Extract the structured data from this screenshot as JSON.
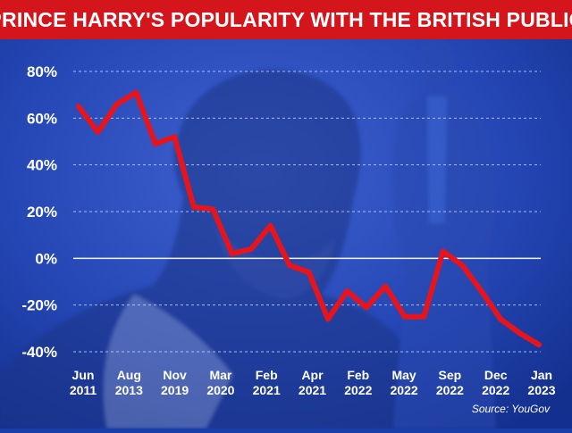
{
  "colors": {
    "title_bar": "#d4161c",
    "background": "#1a3ea8",
    "line": "#e8141c",
    "text": "#ffffff",
    "grid": "#c9d6ff"
  },
  "title": "PRINCE HARRY'S POPULARITY WITH THE BRITISH PUBLIC",
  "source": "Source: YouGov",
  "chart_data": {
    "type": "line",
    "title": "PRINCE HARRY'S POPULARITY WITH THE BRITISH PUBLIC",
    "xlabel": "",
    "ylabel": "",
    "ylim": [
      -40,
      80
    ],
    "yticks": [
      80,
      60,
      40,
      20,
      0,
      -20,
      -40
    ],
    "ytick_labels": [
      "80%",
      "60%",
      "40%",
      "20%",
      "0%",
      "-20%",
      "-40%"
    ],
    "grid": "horizontal dashed",
    "xtick_labels": [
      [
        "Jun",
        "2011"
      ],
      [
        "Aug",
        "2013"
      ],
      [
        "Nov",
        "2019"
      ],
      [
        "Mar",
        "2020"
      ],
      [
        "Feb",
        "2021"
      ],
      [
        "Apr",
        "2021"
      ],
      [
        "Feb",
        "2022"
      ],
      [
        "May",
        "2022"
      ],
      [
        "Sep",
        "2022"
      ],
      [
        "Dec",
        "2022"
      ],
      [
        "Jan",
        "2023"
      ]
    ],
    "series": [
      {
        "values": [
          65,
          54,
          66,
          71,
          49,
          52,
          22,
          21,
          2,
          4,
          14,
          -3,
          -6,
          -26,
          -14,
          -21,
          -12,
          -25,
          -25,
          3,
          -3,
          -14,
          -26,
          -32,
          -37
        ]
      }
    ]
  }
}
